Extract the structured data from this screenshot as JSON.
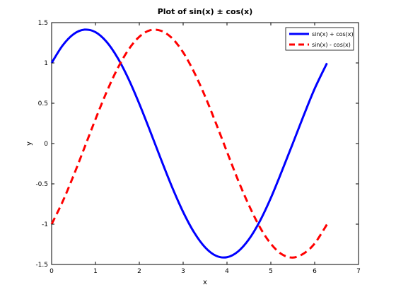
{
  "chart_data": {
    "type": "line",
    "title": "Plot of sin(x) ± cos(x)",
    "xlabel": "x",
    "ylabel": "y",
    "xlim": [
      0,
      7
    ],
    "ylim": [
      -1.5,
      1.5
    ],
    "xticks": [
      0,
      1,
      2,
      3,
      4,
      5,
      6,
      7
    ],
    "yticks": [
      -1.5,
      -1,
      -0.5,
      0,
      0.5,
      1,
      1.5
    ],
    "ytick_labels": [
      "-1.5",
      "-1",
      "-0.5",
      "0",
      "0.5",
      "1",
      "1.5"
    ],
    "grid": false,
    "legend_position": "top-right",
    "x": [
      0,
      0.25,
      0.5,
      0.75,
      1,
      1.25,
      1.5,
      1.75,
      2,
      2.25,
      2.5,
      2.75,
      3,
      3.25,
      3.5,
      3.75,
      4,
      4.25,
      4.5,
      4.75,
      5,
      5.25,
      5.5,
      5.75,
      6,
      6.28
    ],
    "series": [
      {
        "name": "sin(x) + cos(x)",
        "color": "#0000ff",
        "style": "solid",
        "values": [
          1.0,
          1.216,
          1.357,
          1.413,
          1.382,
          1.264,
          1.068,
          0.806,
          0.493,
          0.15,
          -0.203,
          -0.543,
          -0.849,
          -1.102,
          -1.287,
          -1.392,
          -1.41,
          -1.34,
          -1.188,
          -0.962,
          -0.675,
          -0.344,
          0.0,
          0.349,
          0.681,
          0.997
        ]
      },
      {
        "name": "sin(x) - cos(x)",
        "color": "#ff0000",
        "style": "dashed",
        "values": [
          -1.0,
          -0.722,
          -0.398,
          -0.05,
          0.301,
          0.634,
          0.927,
          1.162,
          1.325,
          1.406,
          1.398,
          1.306,
          1.131,
          0.885,
          0.586,
          0.249,
          -0.103,
          -0.451,
          -0.765,
          -1.037,
          -1.243,
          -1.373,
          -1.414,
          -1.364,
          -1.24,
          -1.003
        ]
      }
    ]
  }
}
